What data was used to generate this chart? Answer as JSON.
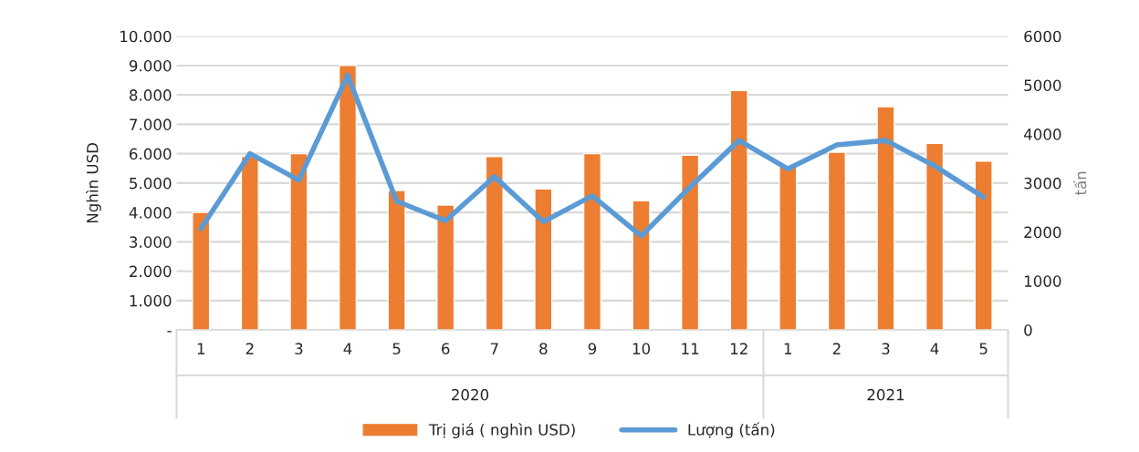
{
  "chart_data": {
    "type": "bar",
    "ylabel": "Nghìn USD",
    "y2label": "tấn",
    "categories": [
      "1",
      "2",
      "3",
      "4",
      "5",
      "6",
      "7",
      "8",
      "9",
      "10",
      "11",
      "12",
      "1",
      "2",
      "3",
      "4",
      "5"
    ],
    "series": [
      {
        "name": "Trị giá ( nghìn USD)",
        "color": "#ed7d31",
        "values": [
          4000,
          5900,
          6000,
          9000,
          4750,
          4250,
          5900,
          4800,
          6000,
          4400,
          5950,
          8150,
          5550,
          6050,
          7600,
          6350,
          5750
        ]
      },
      {
        "name": "Lượng (tấn)",
        "type": "line",
        "axis": "y2",
        "color": "#5b9bd5",
        "values": [
          2070,
          3600,
          3060,
          5200,
          2630,
          2230,
          3130,
          2210,
          2740,
          1920,
          2920,
          3870,
          3290,
          3780,
          3870,
          3350,
          2710
        ]
      }
    ],
    "ylim": [
      0,
      10000
    ],
    "yticks": [
      {
        "value": 0,
        "label": "-"
      },
      {
        "value": 1000,
        "label": "1.000"
      },
      {
        "value": 2000,
        "label": "2.000"
      },
      {
        "value": 3000,
        "label": "3.000"
      },
      {
        "value": 4000,
        "label": "4.000"
      },
      {
        "value": 5000,
        "label": "5.000"
      },
      {
        "value": 6000,
        "label": "6.000"
      },
      {
        "value": 7000,
        "label": "7.000"
      },
      {
        "value": 8000,
        "label": "8.000"
      },
      {
        "value": 9000,
        "label": "9.000"
      },
      {
        "value": 10000,
        "label": "10.000"
      }
    ],
    "y2lim": [
      0,
      6000
    ],
    "y2ticks": [
      0,
      1000,
      2000,
      3000,
      4000,
      5000,
      6000
    ],
    "annotations": [
      "2020",
      "2021"
    ],
    "grid": "y",
    "legend": "bottom"
  }
}
